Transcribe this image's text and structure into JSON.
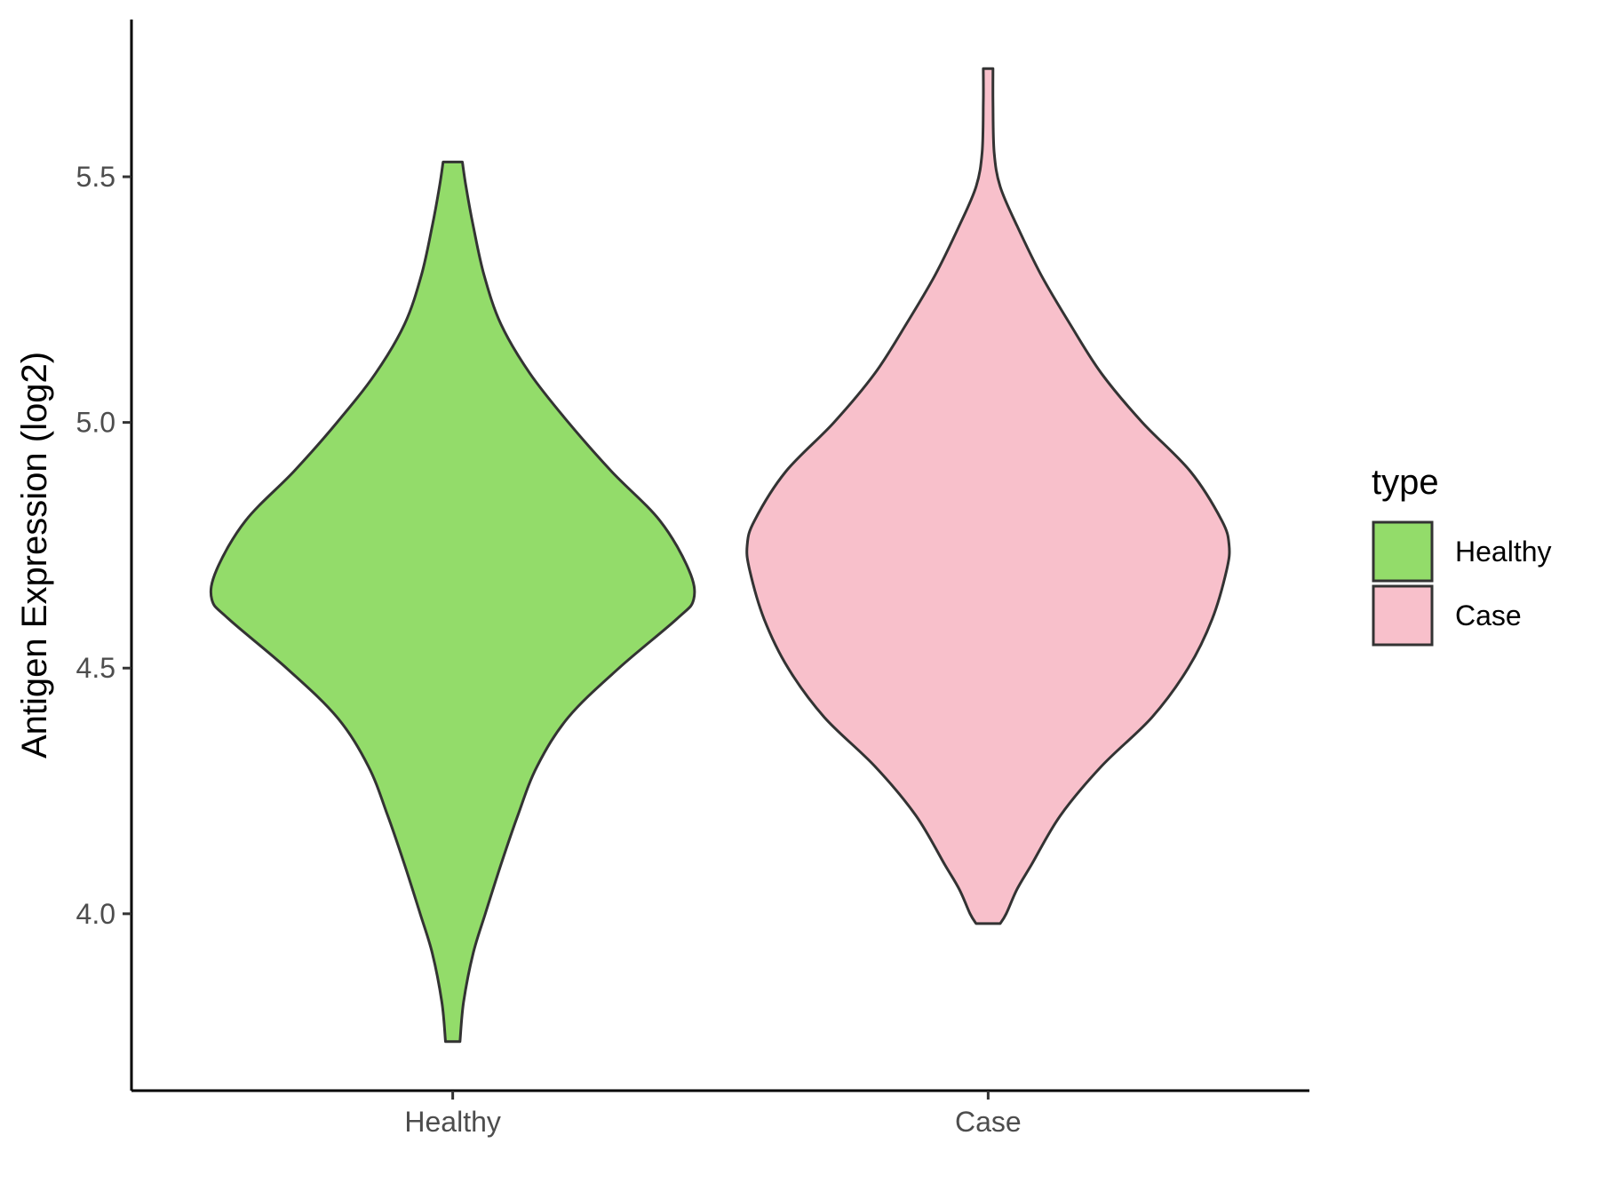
{
  "chart_data": {
    "type": "violin",
    "ylabel": "Antigen Expression (log2)",
    "xlabel": "",
    "categories": [
      "Healthy",
      "Case"
    ],
    "ylim": [
      3.64,
      5.82
    ],
    "yticks": [
      4.0,
      4.5,
      5.0,
      5.5
    ],
    "ytick_labels": [
      "4.0",
      "4.5",
      "5.0",
      "5.5"
    ],
    "grid": false,
    "legend": {
      "title": "type",
      "position": "right",
      "entries": [
        {
          "label": "Healthy",
          "color": "#93dc6a"
        },
        {
          "label": "Case",
          "color": "#f8c0cb"
        }
      ]
    },
    "outline_color": "#333333",
    "series": [
      {
        "category": "Healthy",
        "color": "#93dc6a",
        "min": 3.74,
        "max": 5.53,
        "density_profile": [
          [
            3.74,
            0.03
          ],
          [
            3.82,
            0.045
          ],
          [
            3.92,
            0.085
          ],
          [
            4.0,
            0.135
          ],
          [
            4.1,
            0.2
          ],
          [
            4.2,
            0.27
          ],
          [
            4.3,
            0.35
          ],
          [
            4.4,
            0.48
          ],
          [
            4.5,
            0.69
          ],
          [
            4.6,
            0.93
          ],
          [
            4.64,
            1.0
          ],
          [
            4.7,
            0.98
          ],
          [
            4.8,
            0.86
          ],
          [
            4.9,
            0.66
          ],
          [
            5.0,
            0.48
          ],
          [
            5.1,
            0.32
          ],
          [
            5.2,
            0.2
          ],
          [
            5.3,
            0.13
          ],
          [
            5.4,
            0.085
          ],
          [
            5.48,
            0.055
          ],
          [
            5.53,
            0.04
          ]
        ]
      },
      {
        "category": "Case",
        "color": "#f8c0cb",
        "min": 3.98,
        "max": 5.72,
        "density_profile": [
          [
            3.98,
            0.05
          ],
          [
            4.0,
            0.075
          ],
          [
            4.05,
            0.12
          ],
          [
            4.1,
            0.18
          ],
          [
            4.2,
            0.3
          ],
          [
            4.3,
            0.47
          ],
          [
            4.4,
            0.68
          ],
          [
            4.5,
            0.83
          ],
          [
            4.6,
            0.93
          ],
          [
            4.7,
            0.99
          ],
          [
            4.75,
            1.0
          ],
          [
            4.8,
            0.97
          ],
          [
            4.9,
            0.84
          ],
          [
            5.0,
            0.64
          ],
          [
            5.1,
            0.47
          ],
          [
            5.2,
            0.34
          ],
          [
            5.3,
            0.22
          ],
          [
            5.4,
            0.12
          ],
          [
            5.48,
            0.05
          ],
          [
            5.55,
            0.025
          ],
          [
            5.65,
            0.02
          ],
          [
            5.72,
            0.02
          ]
        ]
      }
    ]
  }
}
